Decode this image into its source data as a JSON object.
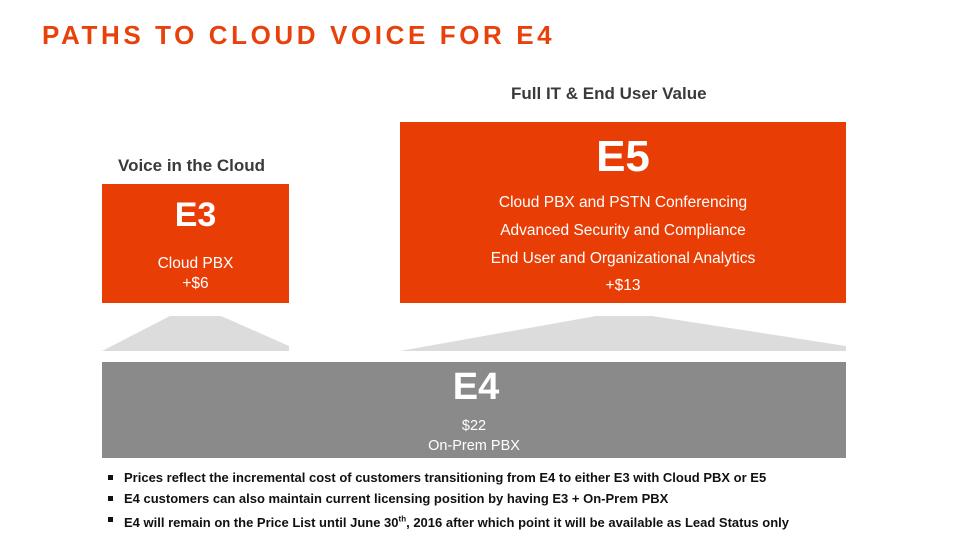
{
  "slide": {
    "title": "PATHS TO CLOUD VOICE FOR E4"
  },
  "labels": {
    "left_top": "Voice in the Cloud",
    "right_top": "Full IT & End User Value"
  },
  "e3": {
    "name": "E3",
    "feature": "Cloud PBX",
    "price": "+$6",
    "color": "#e83d05"
  },
  "e5": {
    "name": "E5",
    "features": [
      "Cloud PBX and PSTN Conferencing",
      "Advanced Security and Compliance",
      "End User and  Organizational Analytics"
    ],
    "price": "+$13",
    "color": "#e83d05"
  },
  "e4": {
    "name": "E4",
    "price": "$22",
    "note": "On-Prem PBX",
    "color": "#8a8a8a"
  },
  "bullets": [
    {
      "text": "Prices reflect the incremental cost of customers transitioning from E4 to either E3 with Cloud PBX or E5"
    },
    {
      "text": "E4 customers can also maintain current licensing position by having E3 + On-Prem PBX"
    },
    {
      "pre": "E4 will remain on the Price List until June 30",
      "sup": "th",
      "post": ", 2016 after which point it will be available as Lead Status only"
    }
  ]
}
